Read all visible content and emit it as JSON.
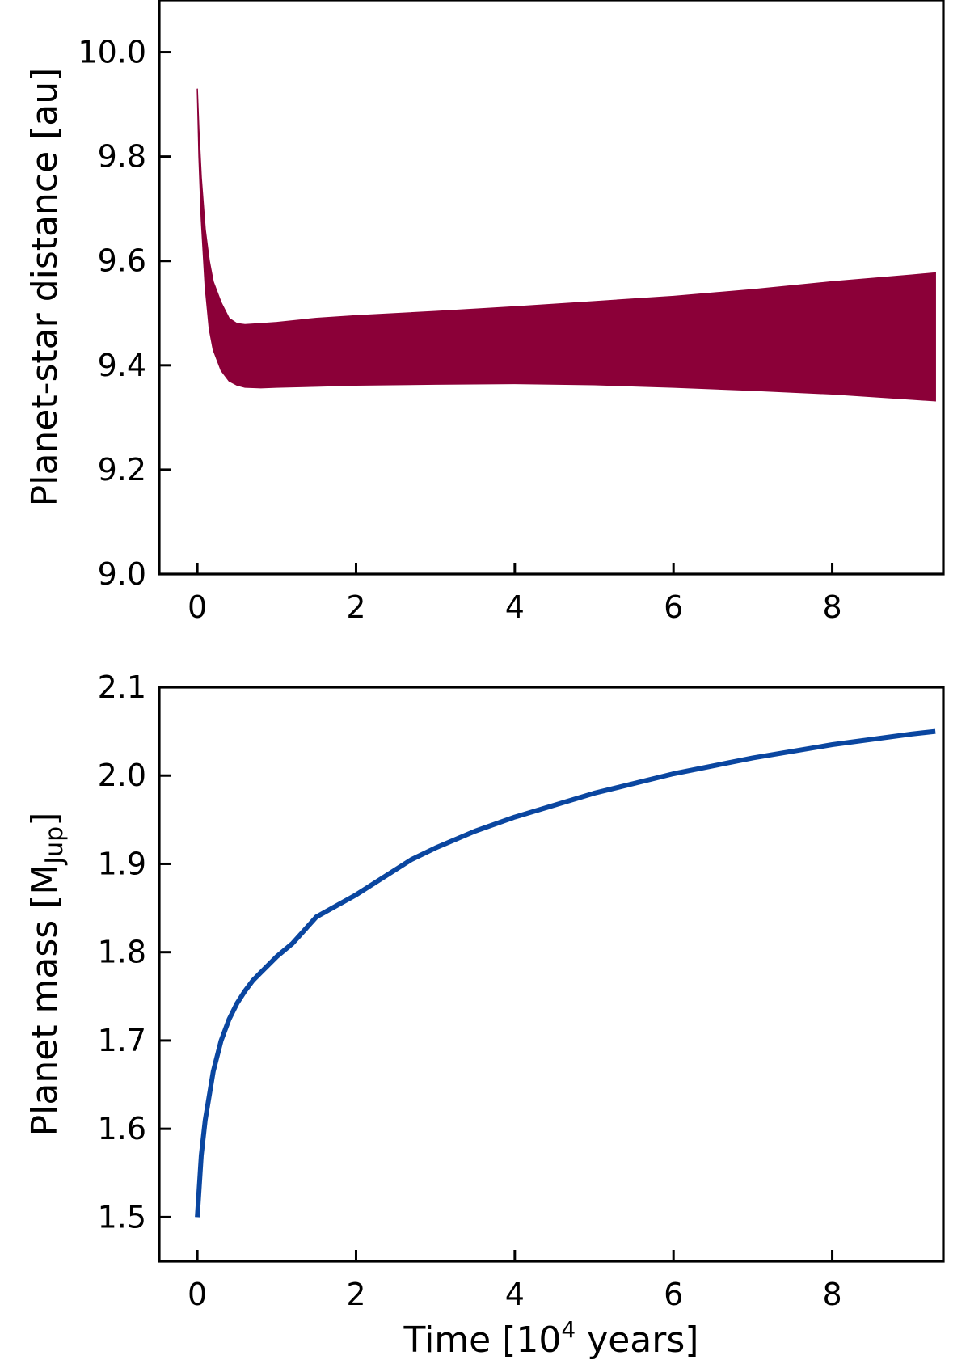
{
  "chart_data": [
    {
      "type": "area",
      "panel": "top",
      "xlabel": "",
      "ylabel": "Planet-star distance [au]",
      "xlim": [
        -0.48,
        9.4
      ],
      "ylim": [
        9.0,
        10.1
      ],
      "xticks": [
        0,
        2,
        4,
        6,
        8
      ],
      "yticks": [
        9.0,
        9.2,
        9.4,
        9.6,
        9.8,
        10.0
      ],
      "xtick_labels": [
        "0",
        "2",
        "4",
        "6",
        "8"
      ],
      "ytick_labels": [
        "9.0",
        "9.2",
        "9.4",
        "9.6",
        "9.8",
        "10.0"
      ],
      "grid": false,
      "legend": "none",
      "color": "#8b0038",
      "series": [
        {
          "x": [
            0.0,
            0.02,
            0.05,
            0.1,
            0.15,
            0.2,
            0.3,
            0.4,
            0.5,
            0.6,
            0.8,
            1.0,
            1.5,
            2.0,
            3.0,
            4.0,
            5.0,
            6.0,
            7.0,
            8.0,
            9.0,
            9.3
          ],
          "upper": [
            9.93,
            9.85,
            9.76,
            9.66,
            9.6,
            9.56,
            9.52,
            9.49,
            9.48,
            9.478,
            9.48,
            9.482,
            9.49,
            9.495,
            9.503,
            9.512,
            9.522,
            9.532,
            9.545,
            9.56,
            9.573,
            9.577
          ],
          "lower": [
            9.93,
            9.8,
            9.68,
            9.55,
            9.47,
            9.43,
            9.39,
            9.37,
            9.362,
            9.358,
            9.357,
            9.358,
            9.36,
            9.362,
            9.364,
            9.365,
            9.363,
            9.358,
            9.352,
            9.345,
            9.335,
            9.332
          ]
        }
      ]
    },
    {
      "type": "line",
      "panel": "bottom",
      "xlabel": "Time [10⁴ years]",
      "ylabel": "Planet mass [MJup]",
      "xlim": [
        -0.48,
        9.4
      ],
      "ylim": [
        1.45,
        2.1
      ],
      "xticks": [
        0,
        2,
        4,
        6,
        8
      ],
      "yticks": [
        1.5,
        1.6,
        1.7,
        1.8,
        1.9,
        2.0,
        2.1
      ],
      "xtick_labels": [
        "0",
        "2",
        "4",
        "6",
        "8"
      ],
      "ytick_labels": [
        "1.5",
        "1.6",
        "1.7",
        "1.8",
        "1.9",
        "2.0",
        "2.1"
      ],
      "grid": false,
      "legend": "none",
      "color": "#0a46a0",
      "series": [
        {
          "x": [
            0.0,
            0.05,
            0.1,
            0.2,
            0.3,
            0.4,
            0.5,
            0.6,
            0.7,
            0.8,
            1.0,
            1.2,
            1.5,
            2.0,
            2.7,
            3.0,
            3.5,
            4.0,
            5.0,
            6.0,
            7.0,
            8.0,
            9.0,
            9.3
          ],
          "y": [
            1.5,
            1.57,
            1.61,
            1.665,
            1.7,
            1.724,
            1.742,
            1.756,
            1.768,
            1.777,
            1.795,
            1.81,
            1.84,
            1.865,
            1.905,
            1.918,
            1.937,
            1.953,
            1.98,
            2.002,
            2.02,
            2.035,
            2.047,
            2.05
          ]
        }
      ]
    }
  ]
}
